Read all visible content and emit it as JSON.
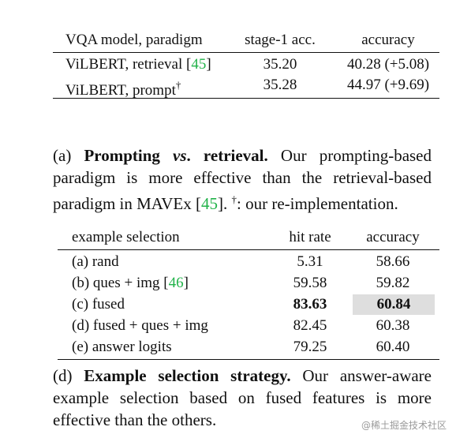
{
  "table_a": {
    "headers": [
      "VQA model, paradigm",
      "stage-1 acc.",
      "accuracy"
    ],
    "rows": [
      {
        "model": "ViLBERT, retrieval [",
        "cite": "45",
        "model_end": "]",
        "dagger": "",
        "stage1": "35.20",
        "accuracy": "40.28 (+5.08)"
      },
      {
        "model": "ViLBERT, prompt",
        "cite": "",
        "model_end": "",
        "dagger": "†",
        "stage1": "35.28",
        "accuracy": "44.97 (+9.69)"
      }
    ]
  },
  "caption_a": {
    "label": "(a) ",
    "bold1": "Prompting ",
    "vs": "vs",
    "bold2": ". retrieval.",
    "text1": " Our prompting-based paradigm is more effective than the retrieval-based paradigm in MAVEx [",
    "cite": "45",
    "text2": "]. ",
    "dagger": "†",
    "text3": ": our re-implementation."
  },
  "table_d": {
    "headers": [
      "example selection",
      "hit rate",
      "accuracy"
    ],
    "rows": [
      {
        "name": "(a) rand",
        "cite": "",
        "name_end": "",
        "hit": "5.31",
        "accuracy": "58.66"
      },
      {
        "name": "(b) ques + img [",
        "cite": "46",
        "name_end": "]",
        "hit": "59.58",
        "accuracy": "59.82"
      },
      {
        "name": "(c) fused",
        "cite": "",
        "name_end": "",
        "hit": "83.63",
        "accuracy": "60.84"
      },
      {
        "name": "(d) fused + ques + img",
        "cite": "",
        "name_end": "",
        "hit": "82.45",
        "accuracy": "60.38"
      },
      {
        "name": "(e) answer logits",
        "cite": "",
        "name_end": "",
        "hit": "79.25",
        "accuracy": "60.40"
      }
    ]
  },
  "caption_d": {
    "label": "(d) ",
    "bold": "Example selection strategy.",
    "text": " Our answer-aware example selection based on fused features is more effective than the others."
  },
  "watermark": "@稀土掘金技术社区",
  "colors": {
    "citation": "#22b34a",
    "highlight": "#dedede"
  }
}
